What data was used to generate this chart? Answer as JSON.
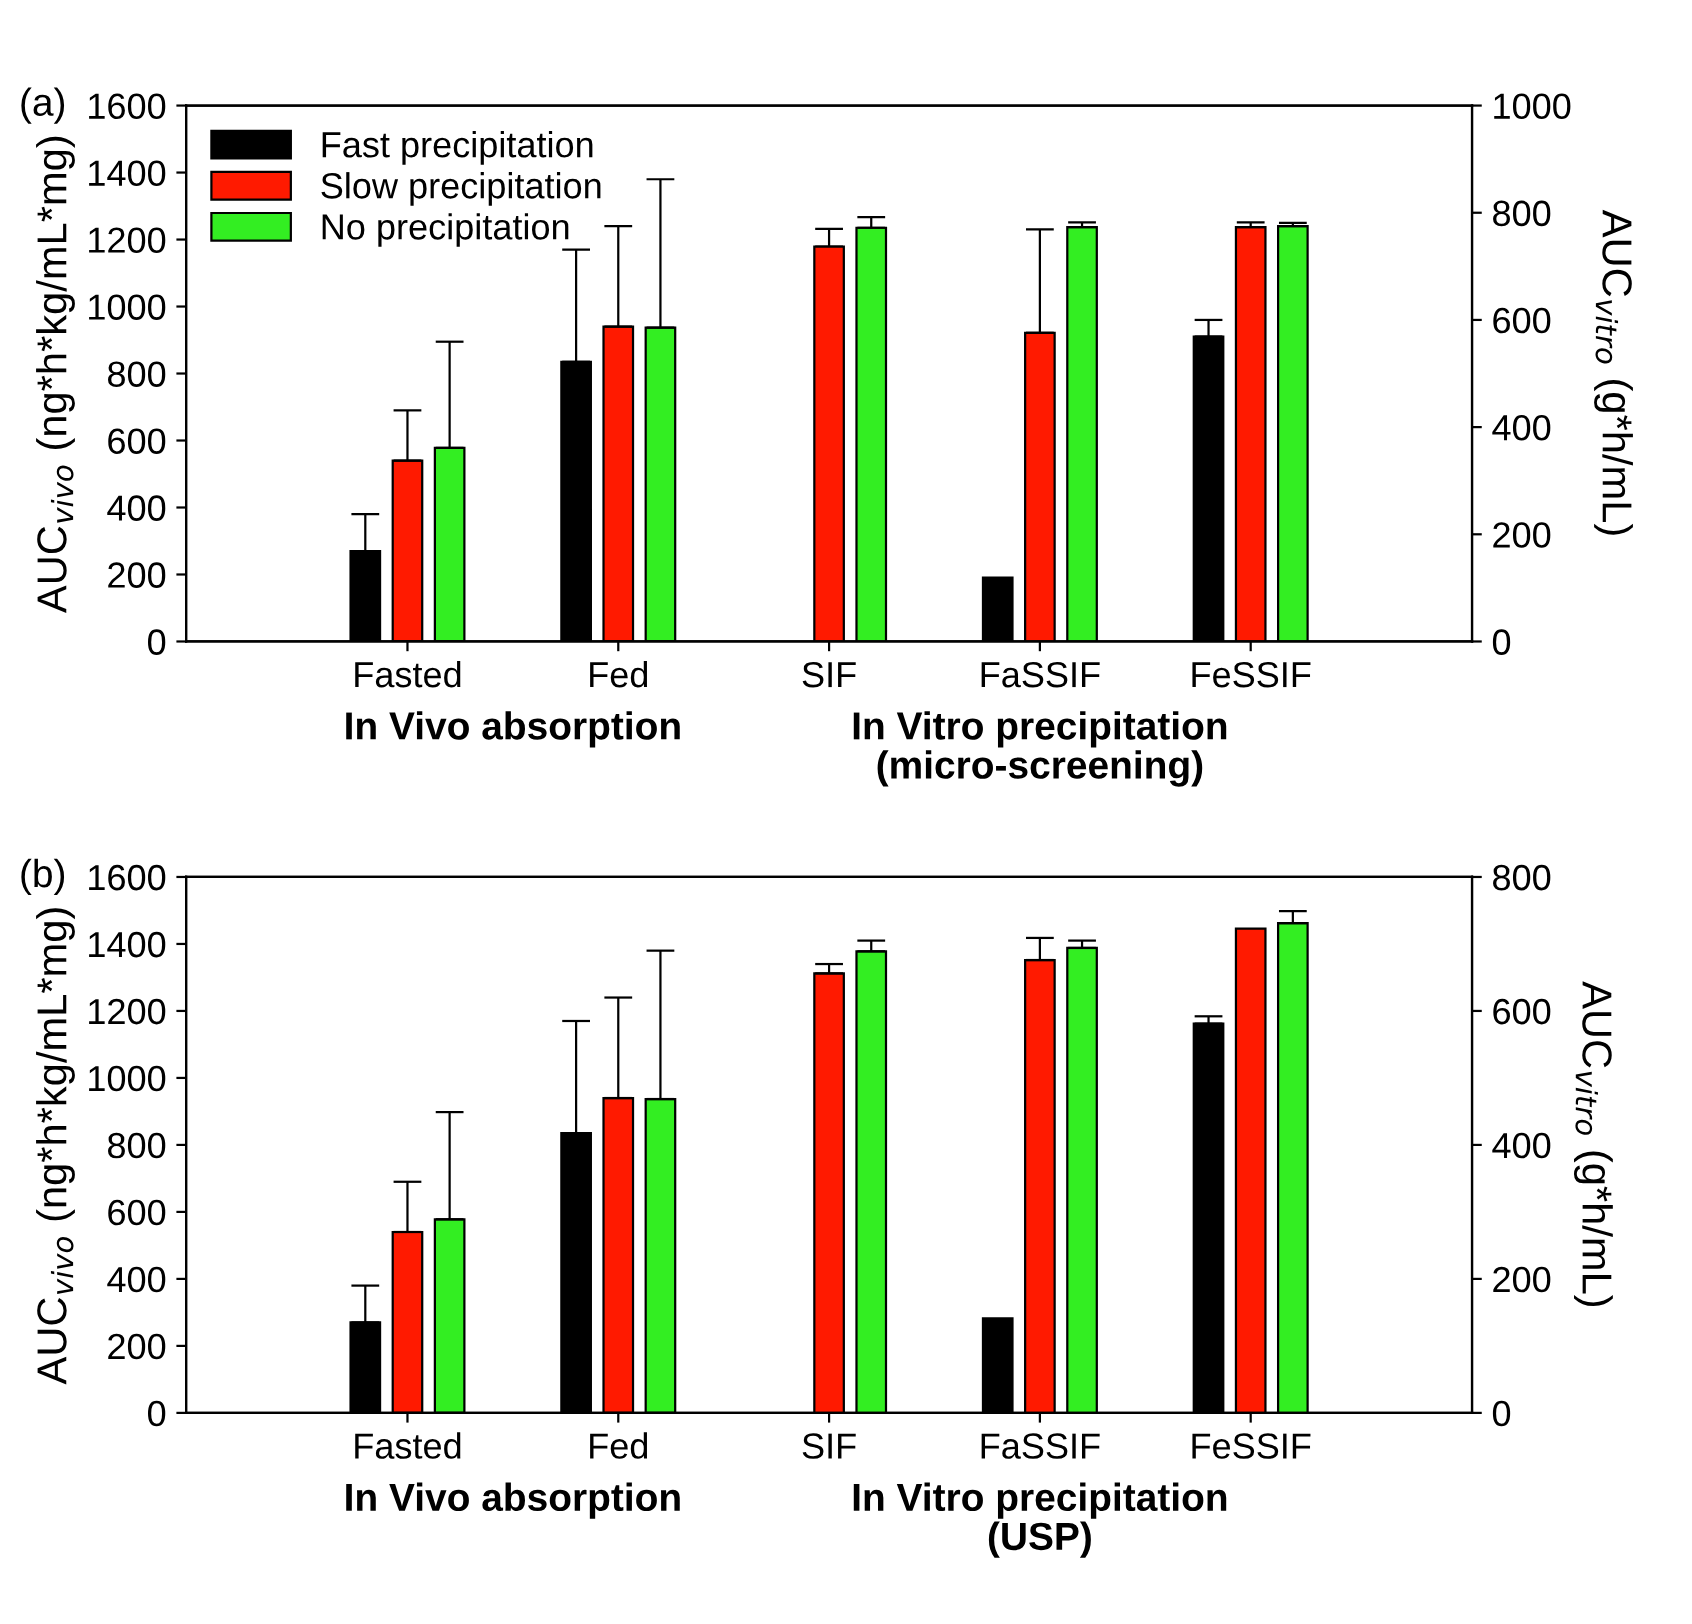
{
  "chart_data": [
    {
      "type": "bar",
      "title": "(a)",
      "categories": [
        "Fasted",
        "Fed",
        "SIF",
        "FaSSIF",
        "FeSSIF"
      ],
      "ylabel": "AUC$_{vivo}$ (ng*h*kg/mL*mg)",
      "y2label": "AUC$_{vitro}$ (g*h/mL)",
      "ylim": [
        0,
        1600
      ],
      "yticks": [
        0,
        200,
        400,
        600,
        800,
        1000,
        1200,
        1400,
        1600
      ],
      "y2lim": [
        0,
        1000
      ],
      "y2ticks": [
        0,
        200,
        400,
        600,
        800,
        1000
      ],
      "annotations": [
        "In Vivo absorption",
        "In Vitro precipitation\n(micro-screening)"
      ],
      "legend": "top left",
      "grid": false,
      "series": [
        {
          "name": "Fast precipitation",
          "color": "#000000",
          "values": [
            270,
            835,
            null,
            null,
            null
          ],
          "errors": [
            [
              270,
              380
            ],
            [
              835,
              1170
            ],
            null,
            null,
            null
          ]
        },
        {
          "name": "Slow precipitation",
          "color": "#ff1a00",
          "values": [
            540,
            940,
            null,
            null,
            null
          ],
          "errors": [
            [
              540,
              690
            ],
            [
              940,
              1240
            ],
            null,
            null,
            null
          ]
        },
        {
          "name": "No precipitation",
          "color": "#33ee22",
          "values": [
            578,
            937,
            null,
            null,
            null
          ],
          "errors": [
            [
              578,
              895
            ],
            [
              937,
              1380
            ],
            null,
            null,
            null
          ]
        },
        {
          "axis": "y2",
          "color": "#000000",
          "values": [
            null,
            null,
            null,
            119,
            569
          ],
          "errors": [
            null,
            null,
            null,
            null,
            [
              569,
              600
            ]
          ]
        },
        {
          "axis": "y2",
          "color": "#ff1a00",
          "values": [
            null,
            null,
            737,
            576,
            773
          ],
          "errors": [
            null,
            null,
            [
              737,
              770
            ],
            [
              576,
              769
            ],
            [
              773,
              782
            ]
          ]
        },
        {
          "axis": "y2",
          "color": "#33ee22",
          "values": [
            null,
            null,
            772,
            773,
            775
          ],
          "errors": [
            null,
            null,
            [
              772,
              792
            ],
            [
              773,
              782
            ],
            [
              775,
              781
            ]
          ]
        }
      ]
    },
    {
      "type": "bar",
      "title": "(b)",
      "categories": [
        "Fasted",
        "Fed",
        "SIF",
        "FaSSIF",
        "FeSSIF"
      ],
      "ylabel": "AUC$_{vivo}$ (ng*h*kg/mL*mg)",
      "y2label": "AUC$_{vitro}$ (g*h/mL)",
      "ylim": [
        0,
        1600
      ],
      "yticks": [
        0,
        200,
        400,
        600,
        800,
        1000,
        1200,
        1400,
        1600
      ],
      "y2lim": [
        0,
        800
      ],
      "y2ticks": [
        0,
        200,
        400,
        600,
        800
      ],
      "annotations": [
        "In Vivo absorption",
        "In Vitro precipitation\n(USP)"
      ],
      "grid": false,
      "series": [
        {
          "color": "#000000",
          "values": [
            270,
            835,
            null,
            null,
            null
          ],
          "errors": [
            [
              270,
              380
            ],
            [
              835,
              1170
            ],
            null,
            null,
            null
          ]
        },
        {
          "color": "#ff1a00",
          "values": [
            540,
            940,
            null,
            null,
            null
          ],
          "errors": [
            [
              540,
              690
            ],
            [
              940,
              1240
            ],
            null,
            null,
            null
          ]
        },
        {
          "color": "#33ee22",
          "values": [
            578,
            937,
            null,
            null,
            null
          ],
          "errors": [
            [
              578,
              898
            ],
            [
              937,
              1380
            ],
            null,
            null,
            null
          ]
        },
        {
          "axis": "y2",
          "color": "#000000",
          "values": [
            null,
            null,
            null,
            141,
            581
          ],
          "errors": [
            null,
            null,
            null,
            null,
            [
              581,
              592
            ]
          ]
        },
        {
          "axis": "y2",
          "color": "#ff1a00",
          "values": [
            null,
            null,
            656,
            676,
            723
          ],
          "errors": [
            null,
            null,
            [
              656,
              670
            ],
            [
              676,
              709
            ],
            null
          ]
        },
        {
          "axis": "y2",
          "color": "#33ee22",
          "values": [
            null,
            null,
            689,
            694,
            731
          ],
          "errors": [
            null,
            null,
            [
              689,
              705
            ],
            [
              694,
              705
            ],
            [
              731,
              749
            ]
          ]
        }
      ]
    }
  ]
}
